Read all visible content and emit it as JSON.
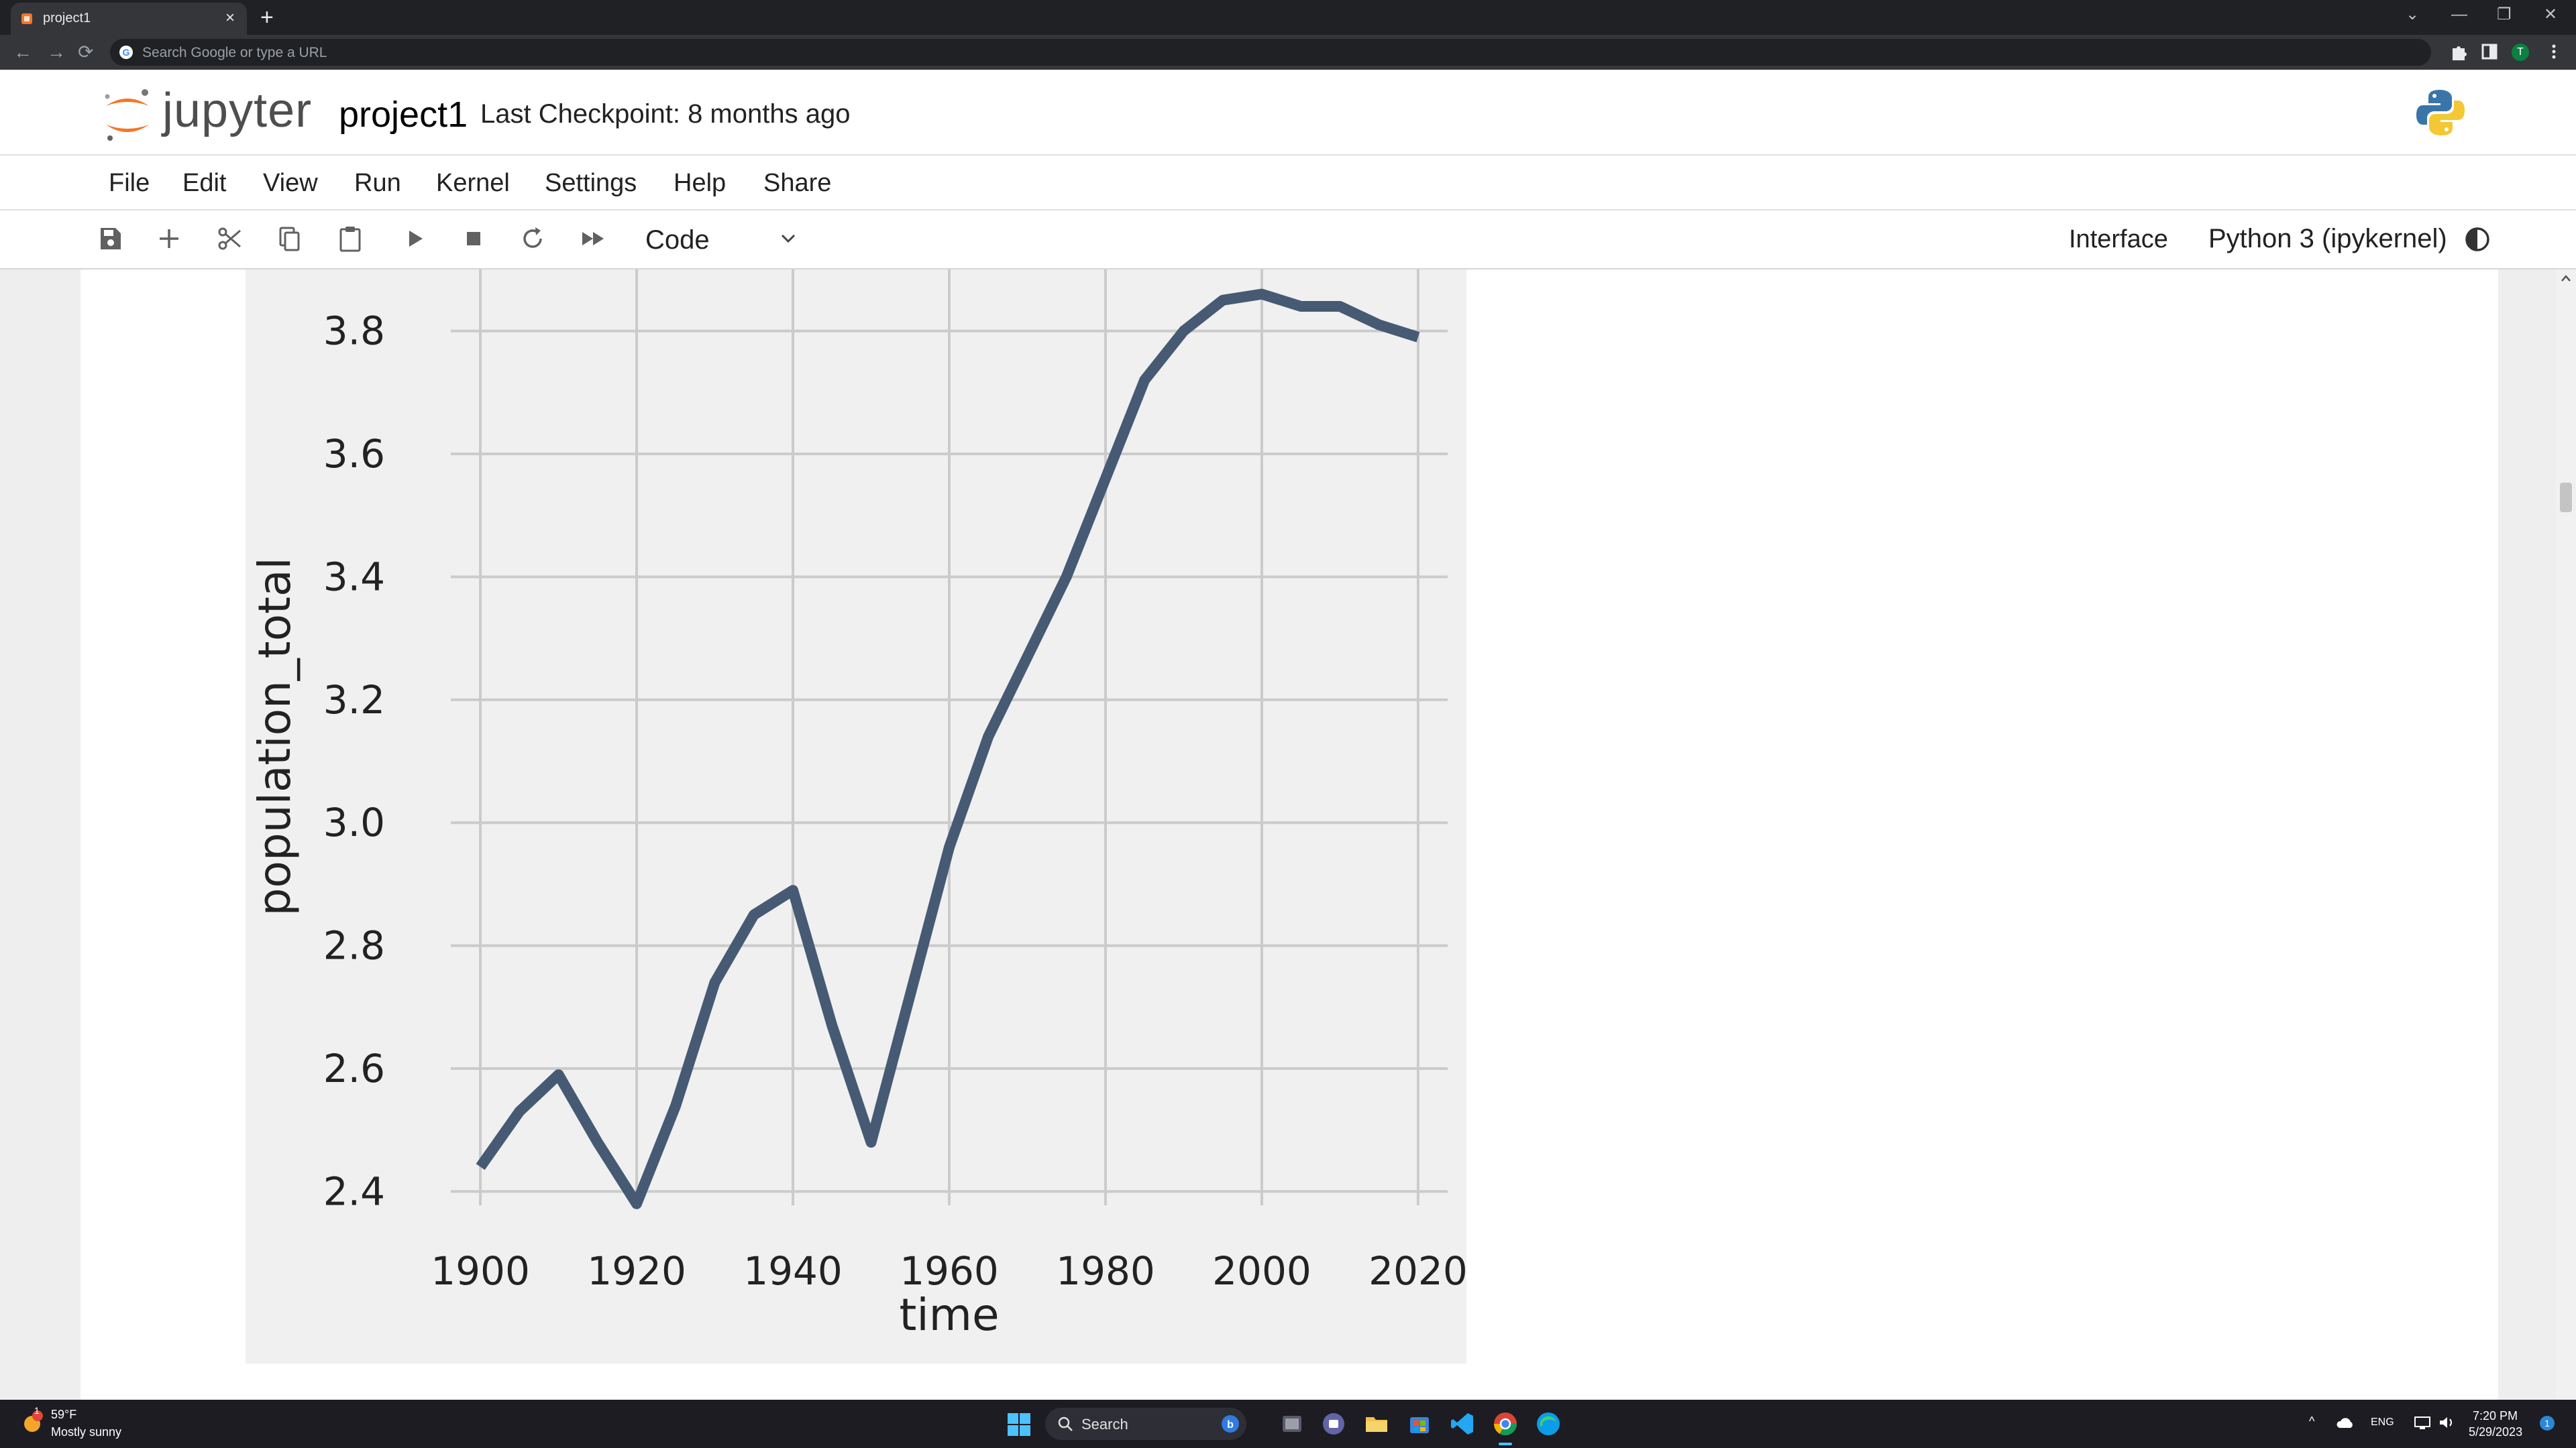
{
  "browser": {
    "tab_title": "project1",
    "tab_close": "×",
    "new_tab": "+",
    "omnibox_placeholder": "Search Google or type a URL",
    "profile_initial": "T",
    "window_controls": [
      "⌄",
      "—",
      "❐",
      "✕"
    ],
    "nav": {
      "back": "←",
      "forward": "→",
      "reload": "⟳"
    }
  },
  "jupyter": {
    "logo_text": "jupyter",
    "notebook_title": "project1",
    "checkpoint": "Last Checkpoint: 8 months ago",
    "menu": [
      "File",
      "Edit",
      "View",
      "Run",
      "Kernel",
      "Settings",
      "Help",
      "Share"
    ],
    "toolbar_icons": [
      "save-icon",
      "add-cell-icon",
      "cut-icon",
      "copy-icon",
      "paste-icon",
      "run-icon",
      "stop-icon",
      "restart-icon",
      "run-all-icon"
    ],
    "cell_type": "Code",
    "interface_label": "Interface",
    "kernel_name": "Python 3 (ipykernel)"
  },
  "chart_data": {
    "type": "line",
    "style": "fivethirtyeight",
    "xlabel": "time",
    "ylabel": "population_total",
    "xticks": [
      1900,
      1920,
      1940,
      1960,
      1980,
      2000,
      2020
    ],
    "yticks": [
      "2.4",
      "2.6",
      "2.8",
      "3.0",
      "3.2",
      "3.4",
      "3.6",
      "3.8"
    ],
    "xlim": [
      1894.5,
      2025.5
    ],
    "ylim": [
      2.36,
      3.9
    ],
    "grid": true,
    "colors": {
      "line": "#475a74",
      "background": "#f0f0f0",
      "grid": "#cbcbcb"
    },
    "series": [
      {
        "x": [
          1900,
          1905,
          1910,
          1915,
          1920,
          1925,
          1930,
          1935,
          1940,
          1945,
          1950,
          1955,
          1960,
          1965,
          1970,
          1975,
          1980,
          1985,
          1990,
          1995,
          2000,
          2005,
          2010,
          2015,
          2020
        ],
        "values": [
          2.44,
          2.53,
          2.59,
          2.48,
          2.38,
          2.54,
          2.74,
          2.85,
          2.89,
          2.67,
          2.48,
          2.72,
          2.96,
          3.14,
          3.27,
          3.4,
          3.56,
          3.72,
          3.8,
          3.85,
          3.86,
          3.84,
          3.84,
          3.81,
          3.79
        ]
      }
    ]
  },
  "taskbar": {
    "weather_temp": "59°F",
    "weather_desc": "Mostly sunny",
    "weather_badge": "1",
    "search_label": "Search",
    "tray_up": "^",
    "lang": "ENG",
    "time": "7:20 PM",
    "date": "5/29/2023",
    "apps": [
      "windows-start",
      "bing-icon",
      "task-view-icon",
      "teams-icon",
      "file-explorer-icon",
      "store-icon",
      "vscode-icon",
      "chrome-icon",
      "edge-icon"
    ]
  }
}
